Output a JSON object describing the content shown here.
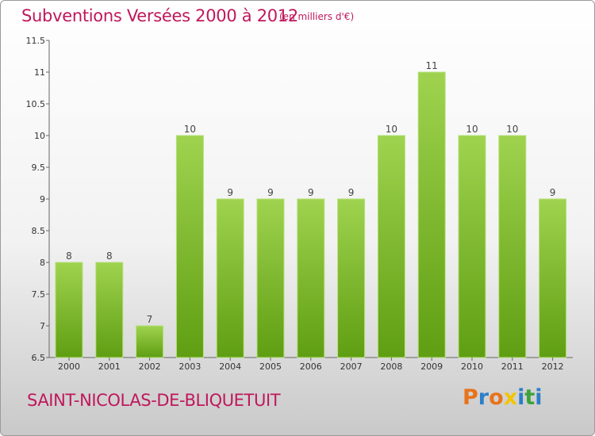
{
  "header": {
    "title": "Subventions Versées 2000 à 2012",
    "unit": "(en milliers d'€)"
  },
  "footer": {
    "commune": "SAINT-NICOLAS-DE-BLIQUETUIT",
    "logo": {
      "letters": [
        "P",
        "r",
        "o",
        "x",
        "i",
        "t",
        "i"
      ],
      "colors": [
        "#e8731a",
        "#2c7fc9",
        "#e8731a",
        "#f2c500",
        "#2c7fc9",
        "#3ca33c",
        "#2c7fc9"
      ]
    }
  },
  "colors": {
    "accent": "#c0175c",
    "bar_top": "#9fd34f",
    "bar_bottom": "#5f9e12"
  },
  "chart_data": {
    "type": "bar",
    "categories": [
      "2000",
      "2001",
      "2002",
      "2003",
      "2004",
      "2005",
      "2006",
      "2007",
      "2008",
      "2009",
      "2010",
      "2011",
      "2012"
    ],
    "values": [
      8,
      8,
      7,
      10,
      9,
      9,
      9,
      9,
      10,
      11,
      10,
      10,
      9
    ],
    "ylim": [
      6.5,
      11.5
    ],
    "yticks": [
      6.5,
      7,
      7.5,
      8,
      8.5,
      9,
      9.5,
      10,
      10.5,
      11,
      11.5
    ],
    "ytick_labels": [
      "6.5",
      "7",
      "7.5",
      "8",
      "8.5",
      "9",
      "9.5",
      "10",
      "10.5",
      "11",
      "11.5"
    ],
    "grid": false
  }
}
